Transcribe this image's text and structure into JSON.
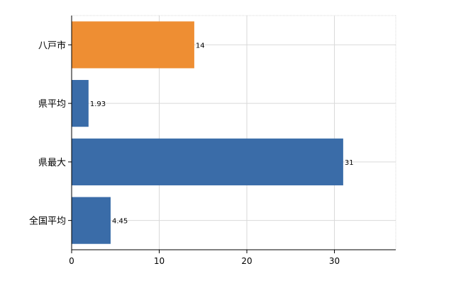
{
  "chart_data": {
    "type": "bar",
    "orientation": "horizontal",
    "categories": [
      "八戸市",
      "県平均",
      "県最大",
      "全国平均"
    ],
    "values": [
      14,
      1.93,
      31,
      4.45
    ],
    "value_labels": [
      "14",
      "1.93",
      "31",
      "4.45"
    ],
    "colors": [
      "#EE8E33",
      "#3A6CA8",
      "#3A6CA8",
      "#3A6CA8"
    ],
    "xlim": [
      0,
      37
    ],
    "x_ticks": [
      0,
      10,
      20,
      30
    ],
    "x_tick_labels": [
      "0",
      "10",
      "20",
      "30"
    ],
    "grid": true,
    "legend": "none"
  }
}
